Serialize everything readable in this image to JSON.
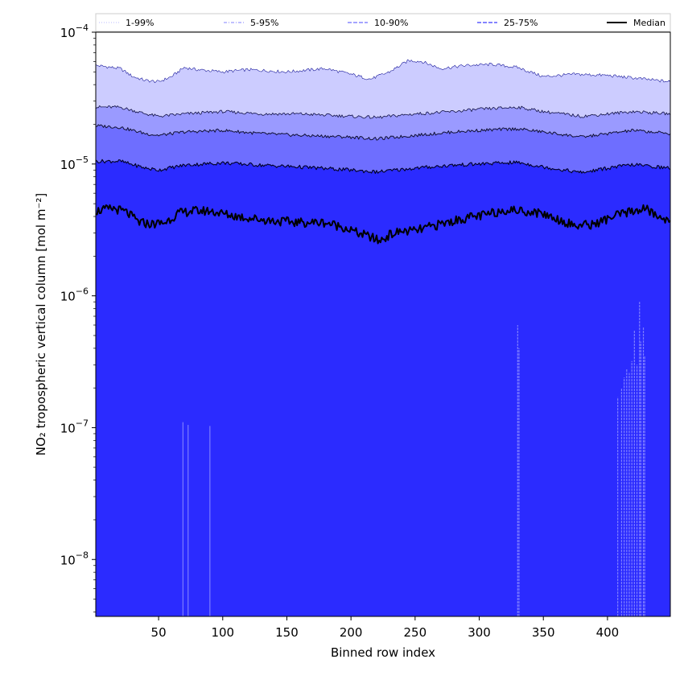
{
  "chart_data": {
    "type": "area",
    "title": "",
    "xlabel": "Binned row index",
    "ylabel": "NO₂ tropospheric vertical column [mol m⁻²]",
    "xlim": [
      1,
      449
    ],
    "ylim": [
      3.7e-09,
      0.0001
    ],
    "yscale": "log",
    "grid": false,
    "legend_position": "top",
    "x_ticks": [
      50,
      100,
      150,
      200,
      250,
      300,
      350,
      400
    ],
    "y_ticks": [
      {
        "value": 1e-08,
        "base": "10",
        "exp": "−8"
      },
      {
        "value": 1e-07,
        "base": "10",
        "exp": "−7"
      },
      {
        "value": 1e-06,
        "base": "10",
        "exp": "−6"
      },
      {
        "value": 1e-05,
        "base": "10",
        "exp": "−5"
      },
      {
        "value": 0.0001,
        "base": "10",
        "exp": "−4"
      }
    ],
    "colors": {
      "band_1_99": "#2b2bff",
      "band_5_95": "#5555ff",
      "band_10_90": "#6e6eff",
      "band_25_75": "#9a9aff",
      "band_outer": "#ccccff",
      "median": "#000000",
      "spike": "#7c7cff"
    },
    "legend": [
      {
        "label": "1-99%",
        "style": "dotted",
        "color": "#c8c8ff"
      },
      {
        "label": "5-95%",
        "style": "dashdot",
        "color": "#9a9aff"
      },
      {
        "label": "10-90%",
        "style": "dashed",
        "color": "#6e6eff"
      },
      {
        "label": "25-75%",
        "style": "dashed",
        "color": "#3a3aff"
      },
      {
        "label": "Median",
        "style": "solid",
        "color": "#000000"
      }
    ],
    "series": [
      {
        "key": "p99",
        "x": [
          1,
          20,
          30,
          40,
          50,
          60,
          70,
          80,
          100,
          120,
          150,
          180,
          200,
          215,
          230,
          245,
          255,
          270,
          290,
          310,
          330,
          350,
          375,
          400,
          420,
          449
        ],
        "values": [
          5.6e-05,
          5.3e-05,
          4.6e-05,
          4.3e-05,
          4.2e-05,
          4.6e-05,
          5.4e-05,
          5.2e-05,
          5e-05,
          5.2e-05,
          5e-05,
          5.3e-05,
          4.8e-05,
          4.4e-05,
          5e-05,
          6.1e-05,
          6e-05,
          5.3e-05,
          5.6e-05,
          5.7e-05,
          5.4e-05,
          4.6e-05,
          4.8e-05,
          4.7e-05,
          4.5e-05,
          4.2e-05
        ]
      },
      {
        "key": "p95",
        "x": [
          1,
          20,
          40,
          50,
          70,
          100,
          130,
          160,
          200,
          220,
          250,
          280,
          300,
          330,
          350,
          380,
          400,
          420,
          449
        ],
        "values": [
          2.7e-05,
          2.7e-05,
          2.4e-05,
          2.3e-05,
          2.4e-05,
          2.5e-05,
          2.4e-05,
          2.4e-05,
          2.3e-05,
          2.25e-05,
          2.4e-05,
          2.5e-05,
          2.6e-05,
          2.7e-05,
          2.5e-05,
          2.3e-05,
          2.4e-05,
          2.5e-05,
          2.4e-05
        ]
      },
      {
        "key": "p90",
        "x": [
          1,
          20,
          40,
          50,
          70,
          100,
          130,
          160,
          200,
          220,
          250,
          280,
          300,
          330,
          350,
          380,
          400,
          420,
          449
        ],
        "values": [
          1.95e-05,
          1.9e-05,
          1.7e-05,
          1.65e-05,
          1.75e-05,
          1.8e-05,
          1.7e-05,
          1.65e-05,
          1.6e-05,
          1.55e-05,
          1.65e-05,
          1.75e-05,
          1.8e-05,
          1.85e-05,
          1.75e-05,
          1.6e-05,
          1.7e-05,
          1.8e-05,
          1.7e-05
        ]
      },
      {
        "key": "p75",
        "x": [
          1,
          20,
          40,
          50,
          70,
          100,
          130,
          160,
          200,
          220,
          250,
          280,
          300,
          330,
          350,
          380,
          400,
          420,
          449
        ],
        "values": [
          1.05e-05,
          1.05e-05,
          9.3e-06,
          9e-06,
          9.8e-06,
          1.02e-05,
          9.8e-06,
          9.5e-06,
          9e-06,
          8.7e-06,
          9.3e-06,
          9.8e-06,
          1e-05,
          1.03e-05,
          9.5e-06,
          8.6e-06,
          9.3e-06,
          9.9e-06,
          9.3e-06
        ]
      },
      {
        "key": "median",
        "x": [
          1,
          15,
          25,
          35,
          45,
          55,
          65,
          75,
          90,
          105,
          120,
          140,
          160,
          180,
          195,
          205,
          215,
          222,
          230,
          240,
          250,
          260,
          275,
          290,
          305,
          320,
          335,
          350,
          365,
          375,
          390,
          405,
          420,
          430,
          440,
          449
        ],
        "values": [
          4.4e-06,
          4.6e-06,
          4.3e-06,
          3.6e-06,
          3.5e-06,
          3.6e-06,
          4.2e-06,
          4.4e-06,
          4.4e-06,
          4.1e-06,
          3.9e-06,
          3.7e-06,
          3.6e-06,
          3.6e-06,
          3.3e-06,
          3e-06,
          2.8e-06,
          2.6e-06,
          2.9e-06,
          3.1e-06,
          3.1e-06,
          3.3e-06,
          3.6e-06,
          3.9e-06,
          4.1e-06,
          4.5e-06,
          4.4e-06,
          4.2e-06,
          3.7e-06,
          3.4e-06,
          3.5e-06,
          4e-06,
          4.4e-06,
          4.6e-06,
          3.9e-06,
          3.8e-06
        ]
      }
    ],
    "spikes": [
      {
        "x": 69,
        "value": 1.1e-07
      },
      {
        "x": 73,
        "value": 1.05e-07
      },
      {
        "x": 90,
        "value": 1.03e-07
      },
      {
        "x": 330,
        "value": 6e-07
      },
      {
        "x": 331,
        "value": 4e-07
      },
      {
        "x": 408,
        "value": 1.7e-07
      },
      {
        "x": 411,
        "value": 2e-07
      },
      {
        "x": 413,
        "value": 2.4e-07
      },
      {
        "x": 415,
        "value": 2.8e-07
      },
      {
        "x": 417,
        "value": 2.6e-07
      },
      {
        "x": 419,
        "value": 3.2e-07
      },
      {
        "x": 421,
        "value": 5.5e-07
      },
      {
        "x": 423,
        "value": 3e-07
      },
      {
        "x": 425,
        "value": 9e-07
      },
      {
        "x": 426,
        "value": 4.5e-07
      },
      {
        "x": 428,
        "value": 5.8e-07
      },
      {
        "x": 429,
        "value": 3.5e-07
      }
    ]
  }
}
